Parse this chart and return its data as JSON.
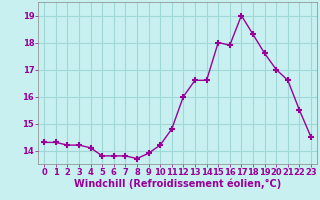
{
  "x": [
    0,
    1,
    2,
    3,
    4,
    5,
    6,
    7,
    8,
    9,
    10,
    11,
    12,
    13,
    14,
    15,
    16,
    17,
    18,
    19,
    20,
    21,
    22,
    23
  ],
  "y": [
    14.3,
    14.3,
    14.2,
    14.2,
    14.1,
    13.8,
    13.8,
    13.8,
    13.7,
    13.9,
    14.2,
    14.8,
    16.0,
    16.6,
    16.6,
    18.0,
    17.9,
    19.0,
    18.3,
    17.6,
    17.0,
    16.6,
    15.5,
    14.5
  ],
  "line_color": "#990099",
  "marker": "+",
  "marker_size": 5,
  "marker_lw": 1.5,
  "background_color": "#c8f0f0",
  "grid_color": "#a0d8d8",
  "xlabel": "Windchill (Refroidissement éolien,°C)",
  "xlabel_fontsize": 7,
  "ylim": [
    13.5,
    19.5
  ],
  "yticks": [
    14,
    15,
    16,
    17,
    18,
    19
  ],
  "xticks": [
    0,
    1,
    2,
    3,
    4,
    5,
    6,
    7,
    8,
    9,
    10,
    11,
    12,
    13,
    14,
    15,
    16,
    17,
    18,
    19,
    20,
    21,
    22,
    23
  ],
  "tick_fontsize": 6,
  "linewidth": 1.0
}
